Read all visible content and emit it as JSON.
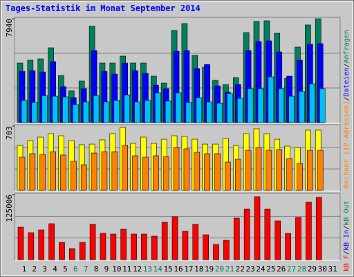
{
  "chart_data": [
    {
      "type": "bar",
      "title": "Tages-Statistik im Monat September 2014",
      "ylim": [
        0,
        7940
      ],
      "yticks": [
        7940
      ],
      "series": [
        {
          "name": "Anfragen",
          "color": "#00805c",
          "values": [
            4552,
            4764,
            4870,
            5717,
            3600,
            2435,
            3176,
            7358,
            4552,
            4552,
            5082,
            4552,
            4552,
            3547,
            3018,
            7040,
            7570,
            5135,
            4235,
            3229,
            2912,
            3441,
            6881,
            7729,
            7782,
            6829,
            3388,
            5770,
            7464,
            7940,
            null
          ]
        },
        {
          "name": "Dateien",
          "color": "#0000ff",
          "values": [
            3917,
            3970,
            3864,
            4658,
            2752,
            1906,
            2594,
            5505,
            3917,
            3705,
            4552,
            3970,
            3758,
            2858,
            2594,
            5452,
            5505,
            4129,
            4446,
            2805,
            2329,
            2911,
            5505,
            6193,
            6246,
            5399,
            3547,
            4764,
            5982,
            6034,
            null
          ]
        },
        {
          "color": "#00c0ff",
          "values": [
            1694,
            1535,
            2064,
            2011,
            1958,
            1376,
            1588,
            2064,
            1588,
            1694,
            2117,
            1588,
            1694,
            2276,
            1641,
            2276,
            1535,
            1906,
            1588,
            1482,
            2223,
            1853,
            2594,
            2594,
            3494,
            2594,
            2011,
            2382,
            2964,
            2594,
            null
          ]
        }
      ]
    },
    {
      "type": "bar",
      "ylim": [
        0,
        703
      ],
      "yticks": [
        703
      ],
      "series": [
        {
          "color": "#ffff00",
          "values": [
            491,
            544,
            582,
            620,
            597,
            544,
            499,
            506,
            552,
            620,
            688,
            514,
            582,
            514,
            559,
            597,
            590,
            559,
            506,
            506,
            567,
            491,
            620,
            673,
            620,
            559,
            484,
            469,
            658,
            658,
            null
          ]
        },
        {
          "name": "Rechner (IP-Adressen)",
          "color": "#ff8000",
          "values": [
            363,
            401,
            393,
            423,
            386,
            318,
            280,
            408,
            423,
            423,
            491,
            378,
            363,
            378,
            370,
            469,
            454,
            416,
            401,
            401,
            310,
            340,
            438,
            469,
            438,
            446,
            348,
            295,
            438,
            438,
            null
          ]
        }
      ]
    },
    {
      "type": "bar",
      "ylim": [
        0,
        125006
      ],
      "yticks": [
        125006
      ],
      "categories": [
        "1",
        "2",
        "3",
        "4",
        "5",
        "6",
        "7",
        "8",
        "9",
        "10",
        "11",
        "12",
        "13",
        "14",
        "15",
        "16",
        "17",
        "18",
        "19",
        "20",
        "21",
        "22",
        "23",
        "24",
        "25",
        "26",
        "27",
        "28",
        "29",
        "30",
        "31"
      ],
      "category_colors": [
        "#000000",
        "#000000",
        "#000000",
        "#000000",
        "#000000",
        "#00805c",
        "#00805c",
        "#000000",
        "#000000",
        "#000000",
        "#000000",
        "#000000",
        "#00805c",
        "#00805c",
        "#000000",
        "#000000",
        "#000000",
        "#000000",
        "#000000",
        "#00805c",
        "#00805c",
        "#000000",
        "#000000",
        "#000000",
        "#000000",
        "#000000",
        "#00805c",
        "#00805c",
        "#000000",
        "#000000",
        "#000000"
      ],
      "series": [
        {
          "name": "kB F",
          "color": "#ff0000",
          "values": [
            62500,
            51870,
            57190,
            69160,
            33250,
            21280,
            33250,
            67830,
            50540,
            49210,
            58520,
            49210,
            49210,
            45220,
            71820,
            82460,
            54530,
            67830,
            47880,
            29260,
            37240,
            79800,
            97090,
            121030,
            97090,
            74480,
            50540,
            81130,
            110390,
            119700,
            null
          ]
        }
      ],
      "legend_extra": [
        {
          "text": "kB In",
          "color": "#0000ff"
        },
        {
          "text": "kB Out",
          "color": "#00805c"
        }
      ]
    }
  ],
  "legend_separator": "/"
}
